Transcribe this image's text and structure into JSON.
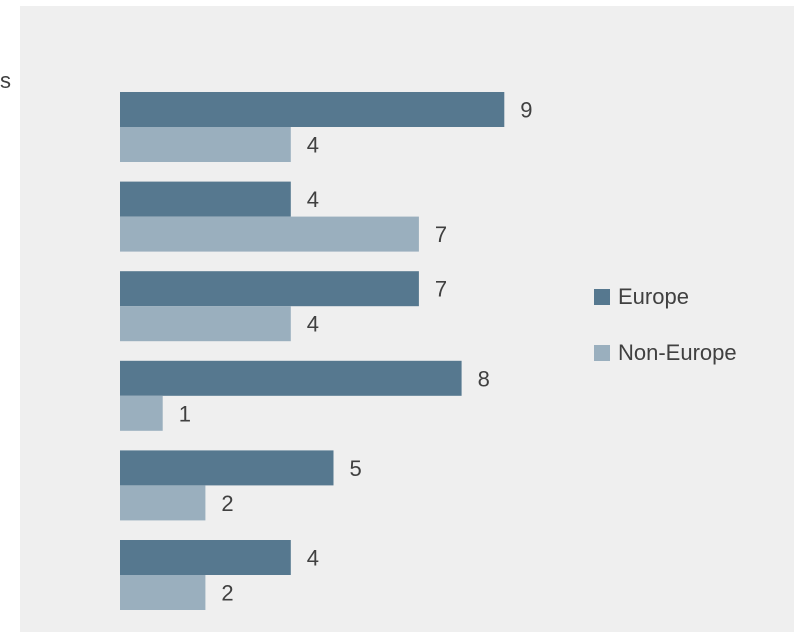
{
  "category_fragment": "s",
  "chart_data": {
    "type": "bar",
    "orientation": "horizontal",
    "categories": [
      "",
      "",
      "",
      "",
      "",
      ""
    ],
    "series": [
      {
        "name": "Europe",
        "color": "#56788f",
        "values": [
          9,
          4,
          7,
          8,
          5,
          4
        ]
      },
      {
        "name": "Non-Europe",
        "color": "#9aafbe",
        "values": [
          4,
          7,
          4,
          1,
          2,
          2
        ]
      }
    ],
    "xlim": [
      0,
      9
    ],
    "grid": false,
    "legend": "right",
    "data_labels": true
  }
}
